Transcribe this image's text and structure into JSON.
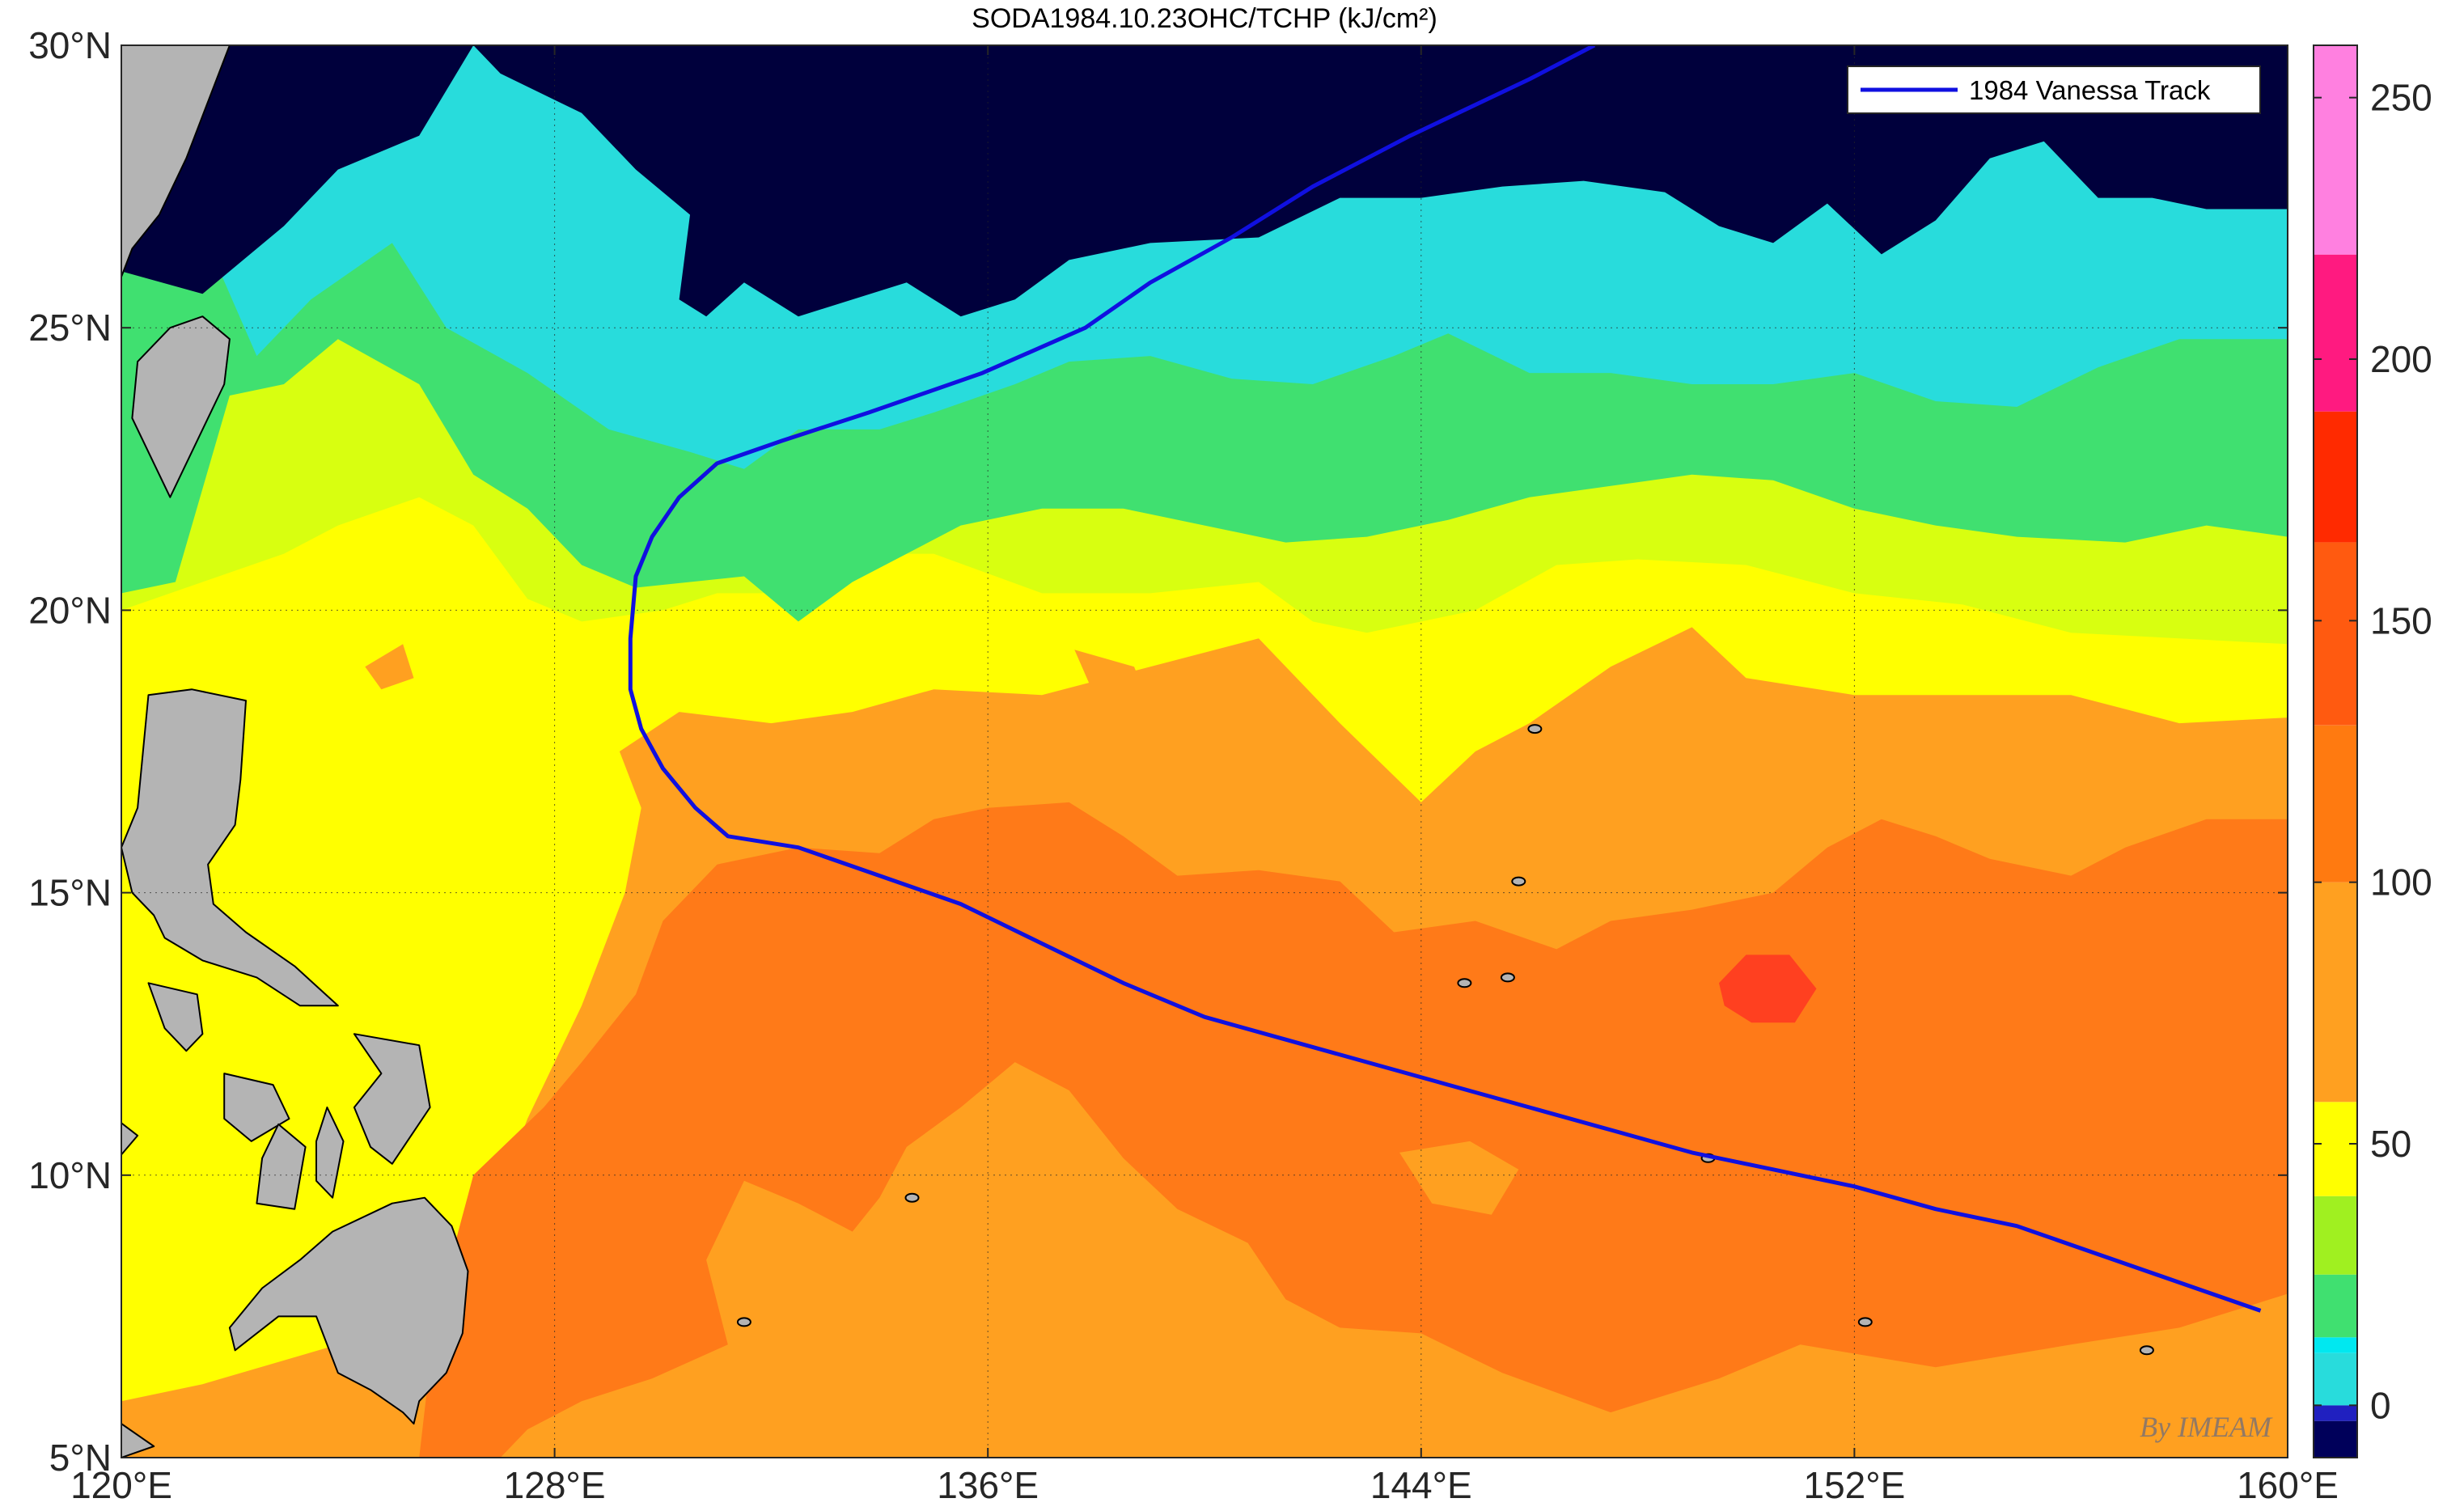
{
  "chart_data": {
    "type": "heatmap",
    "title": "SODA1984.10.23OHC/TCHP (kJ/cm²)",
    "x_ticks": [
      "120°E",
      "128°E",
      "136°E",
      "144°E",
      "152°E",
      "160°E"
    ],
    "y_ticks": [
      "5°N",
      "10°N",
      "15°N",
      "20°N",
      "25°N",
      "30°N"
    ],
    "xlim": [
      120,
      160
    ],
    "ylim": [
      5,
      30
    ],
    "grid": true,
    "legend": {
      "position": "top-right",
      "entries": [
        {
          "label": "1984 Vanessa Track",
          "color": "#1010e0"
        }
      ]
    },
    "colorbar": {
      "range": [
        -10,
        260
      ],
      "ticks": [
        "0",
        "50",
        "100",
        "150",
        "200",
        "250"
      ],
      "tick_values": [
        0,
        50,
        100,
        150,
        200,
        250
      ],
      "bands": [
        {
          "from": -10,
          "to": -3,
          "color": "#00005a"
        },
        {
          "from": -3,
          "to": 0,
          "color": "#2020c0"
        },
        {
          "from": 0,
          "to": 10,
          "color": "#28dcdc"
        },
        {
          "from": 10,
          "to": 13,
          "color": "#00e8f0"
        },
        {
          "from": 13,
          "to": 25,
          "color": "#40e070"
        },
        {
          "from": 25,
          "to": 40,
          "color": "#a0f020"
        },
        {
          "from": 40,
          "to": 58,
          "color": "#ffff00"
        },
        {
          "from": 58,
          "to": 100,
          "color": "#ffa020"
        },
        {
          "from": 100,
          "to": 130,
          "color": "#ff7a10"
        },
        {
          "from": 130,
          "to": 165,
          "color": "#ff5a10"
        },
        {
          "from": 165,
          "to": 190,
          "color": "#ff2a00"
        },
        {
          "from": 190,
          "to": 220,
          "color": "#ff1a80"
        },
        {
          "from": 220,
          "to": 260,
          "color": "#ff80e0"
        }
      ]
    },
    "field_levels": {
      "below_zero": "#00003c",
      "level_0_10": "#28dcdc",
      "level_10_25": "#40e070",
      "level_25_40": "#d8ff10",
      "level_40_58": "#ffff00",
      "level_58_100": "#ffa020",
      "level_100_130": "#ff7a18",
      "level_130_165": "#ff4020",
      "land": "#b4b4b4"
    },
    "series": [
      {
        "name": "1984 Vanessa Track",
        "color": "#1010e0",
        "points": [
          [
            159.5,
            7.6
          ],
          [
            158.0,
            8.1
          ],
          [
            156.5,
            8.6
          ],
          [
            155.0,
            9.1
          ],
          [
            153.5,
            9.4
          ],
          [
            152.0,
            9.8
          ],
          [
            150.5,
            10.1
          ],
          [
            149.0,
            10.4
          ],
          [
            147.5,
            10.8
          ],
          [
            146.0,
            11.2
          ],
          [
            144.5,
            11.6
          ],
          [
            143.0,
            12.0
          ],
          [
            141.5,
            12.4
          ],
          [
            140.0,
            12.8
          ],
          [
            138.5,
            13.4
          ],
          [
            137.0,
            14.1
          ],
          [
            135.5,
            14.8
          ],
          [
            134.0,
            15.3
          ],
          [
            132.5,
            15.8
          ],
          [
            131.2,
            16.0
          ],
          [
            130.6,
            16.5
          ],
          [
            130.0,
            17.2
          ],
          [
            129.6,
            17.9
          ],
          [
            129.4,
            18.6
          ],
          [
            129.4,
            19.5
          ],
          [
            129.5,
            20.6
          ],
          [
            129.8,
            21.3
          ],
          [
            130.3,
            22.0
          ],
          [
            131.0,
            22.6
          ],
          [
            132.2,
            23.0
          ],
          [
            133.8,
            23.5
          ],
          [
            135.9,
            24.2
          ],
          [
            137.8,
            25.0
          ],
          [
            139.0,
            25.8
          ],
          [
            140.5,
            26.6
          ],
          [
            142.0,
            27.5
          ],
          [
            143.8,
            28.4
          ],
          [
            146.0,
            29.4
          ],
          [
            147.2,
            30.0
          ]
        ]
      }
    ],
    "watermark": "By IMEAM"
  }
}
